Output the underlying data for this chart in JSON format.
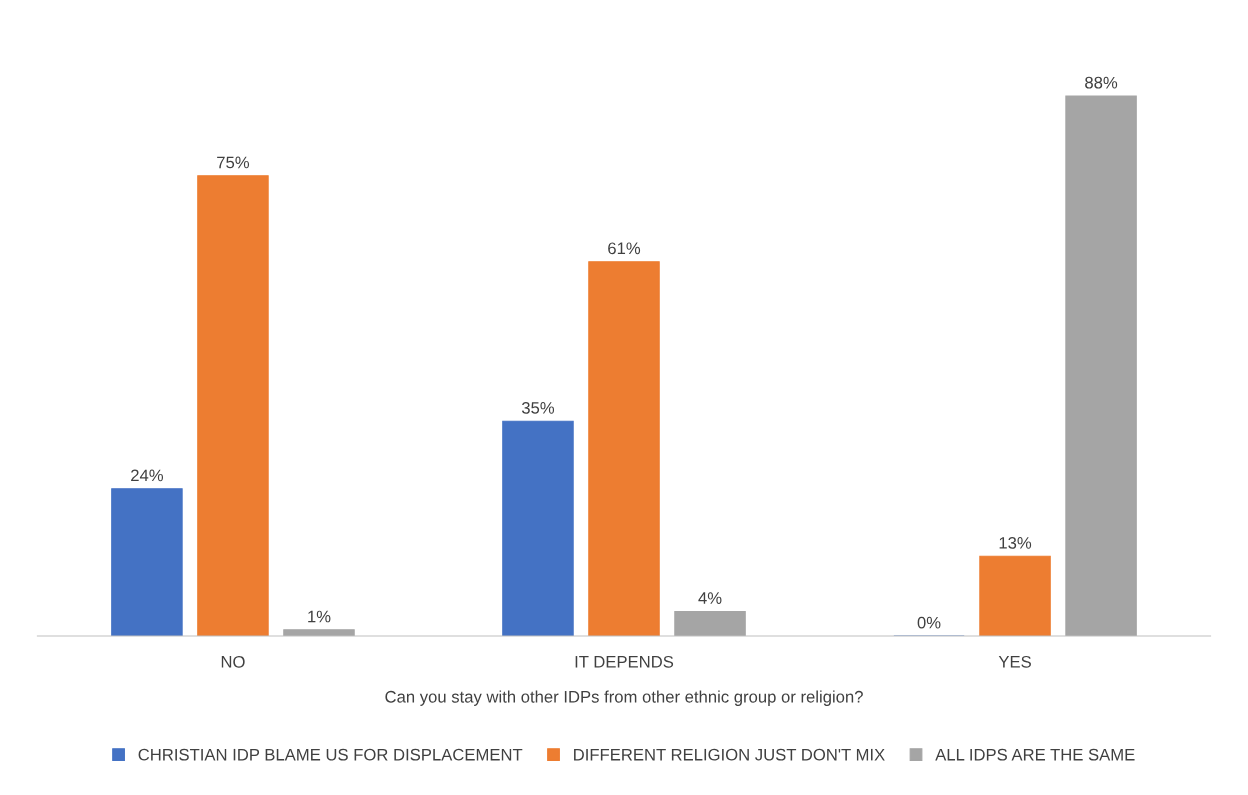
{
  "chart_data": {
    "type": "bar",
    "xlabel": "Can you stay with other IDPs from other ethnic group or religion?",
    "categories": [
      "NO",
      "IT DEPENDS",
      "YES"
    ],
    "series": [
      {
        "name": "CHRISTIAN IDP BLAME US FOR DISPLACEMENT",
        "color": "#4472c4",
        "values": [
          24,
          35,
          0
        ],
        "value_labels": [
          "24%",
          "35%",
          "0%"
        ]
      },
      {
        "name": "DIFFERENT RELIGION JUST DON'T MIX",
        "color": "#ed7d31",
        "values": [
          75,
          61,
          13
        ],
        "value_labels": [
          "75%",
          "61%",
          "13%"
        ]
      },
      {
        "name": "ALL IDPS ARE THE SAME",
        "color": "#a5a5a5",
        "values": [
          1,
          4,
          88
        ],
        "value_labels": [
          "1%",
          "4%",
          "88%"
        ]
      }
    ],
    "legend": "bottom",
    "grid": false
  }
}
